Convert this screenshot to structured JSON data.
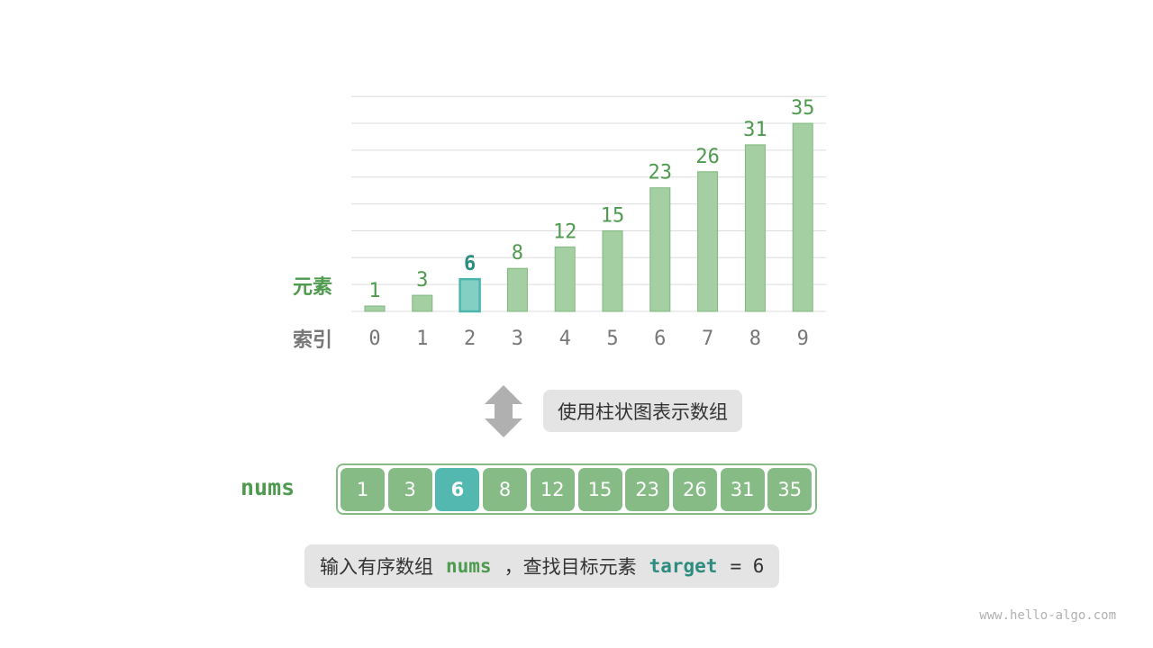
{
  "chart_data": {
    "type": "bar",
    "categories": [
      "0",
      "1",
      "2",
      "3",
      "4",
      "5",
      "6",
      "7",
      "8",
      "9"
    ],
    "values": [
      1,
      3,
      6,
      8,
      12,
      15,
      23,
      26,
      31,
      35
    ],
    "highlight_index": 2,
    "ylim": [
      0,
      40
    ],
    "grid": true,
    "value_label": "元素",
    "index_label": "索引"
  },
  "caption_top": "使用柱状图表示数组",
  "array": {
    "name": "nums",
    "values": [
      "1",
      "3",
      "6",
      "8",
      "12",
      "15",
      "23",
      "26",
      "31",
      "35"
    ],
    "highlight_index": 2
  },
  "caption_bottom": {
    "prefix": "输入有序数组",
    "var": "nums",
    "mid": "，查找目标元素",
    "target": "target",
    "eq": "= 6"
  },
  "footer": "www.hello-algo.com",
  "colors": {
    "bar": "#a3cfa3",
    "bar_stroke": "#7fb87f",
    "highlight": "#84cfc4",
    "highlight_stroke": "#4db6ac",
    "green_text": "#4e9a4e",
    "teal_text": "#2e8b80",
    "cell": "#86bb86",
    "cell_highlight": "#52b8b0"
  }
}
